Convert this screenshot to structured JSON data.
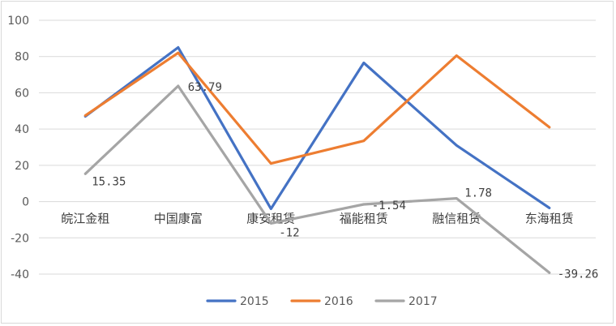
{
  "chart_data": {
    "type": "line",
    "title": "",
    "xlabel": "",
    "ylabel": "",
    "categories": [
      "皖江金租",
      "中国康富",
      "康安租赁",
      "福能租赁",
      "融信租赁",
      "东海租赁"
    ],
    "ylim": [
      -40,
      100
    ],
    "yticks": [
      100,
      80,
      60,
      40,
      20,
      0,
      -20,
      -40
    ],
    "grid": true,
    "legend_position": "bottom",
    "series": [
      {
        "name": "2015",
        "color": "#4472C4",
        "values": [
          47,
          85,
          -4,
          76.5,
          31,
          -3.5
        ]
      },
      {
        "name": "2016",
        "color": "#ED7D31",
        "values": [
          47.5,
          82,
          21,
          33.5,
          80.5,
          41
        ]
      },
      {
        "name": "2017",
        "color": "#A5A5A5",
        "values": [
          15.35,
          63.79,
          -12,
          -1.54,
          1.78,
          -39.26
        ]
      }
    ],
    "data_labels": [
      {
        "series": "2017",
        "index": 0,
        "text": "15.35"
      },
      {
        "series": "2017",
        "index": 1,
        "text": "63.79"
      },
      {
        "series": "2017",
        "index": 2,
        "text": "-12"
      },
      {
        "series": "2017",
        "index": 3,
        "text": "-1.54"
      },
      {
        "series": "2017",
        "index": 4,
        "text": "1.78"
      },
      {
        "series": "2017",
        "index": 5,
        "text": "-39.26"
      }
    ]
  }
}
